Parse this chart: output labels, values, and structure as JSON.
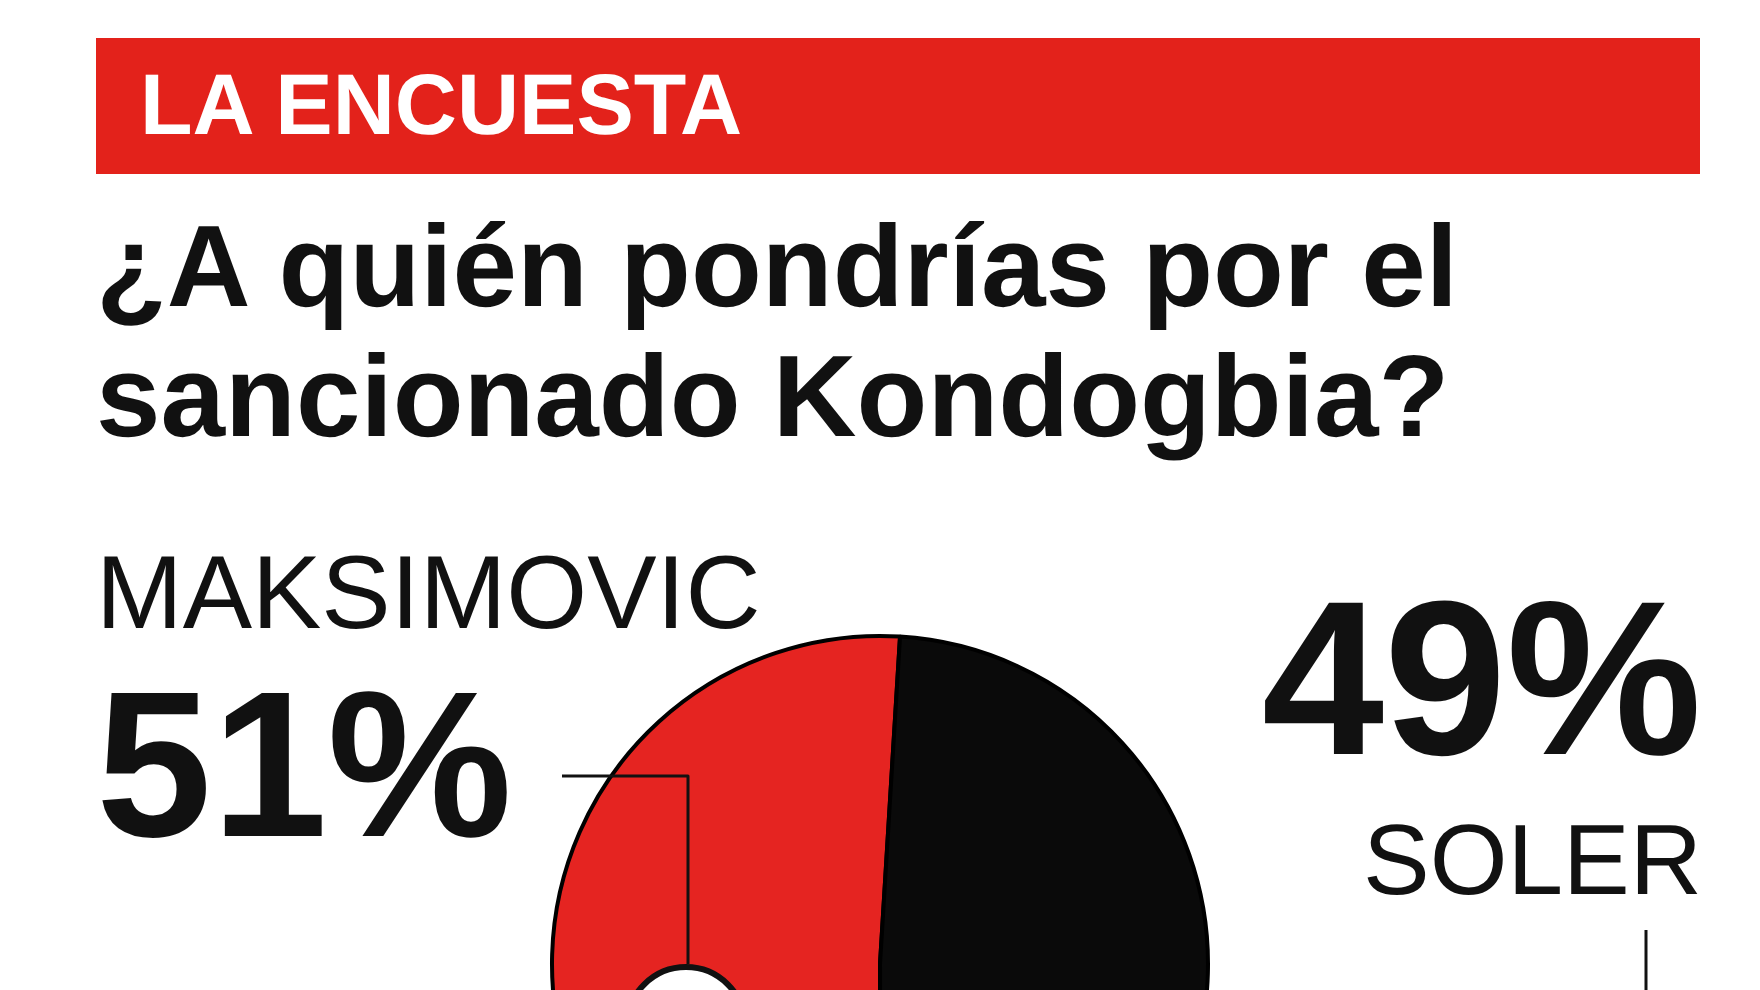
{
  "chart_data": {
    "type": "pie",
    "title": "¿A quién pondrías por el sancionado Kondogbia?",
    "annotations": [
      "LA ENCUESTA"
    ],
    "categories": [
      "MAKSIMOVIC",
      "SOLER"
    ],
    "values": [
      51,
      49
    ],
    "colors": [
      "#e52421",
      "#0a0a0a"
    ],
    "value_labels": [
      "51%",
      "49%"
    ]
  }
}
